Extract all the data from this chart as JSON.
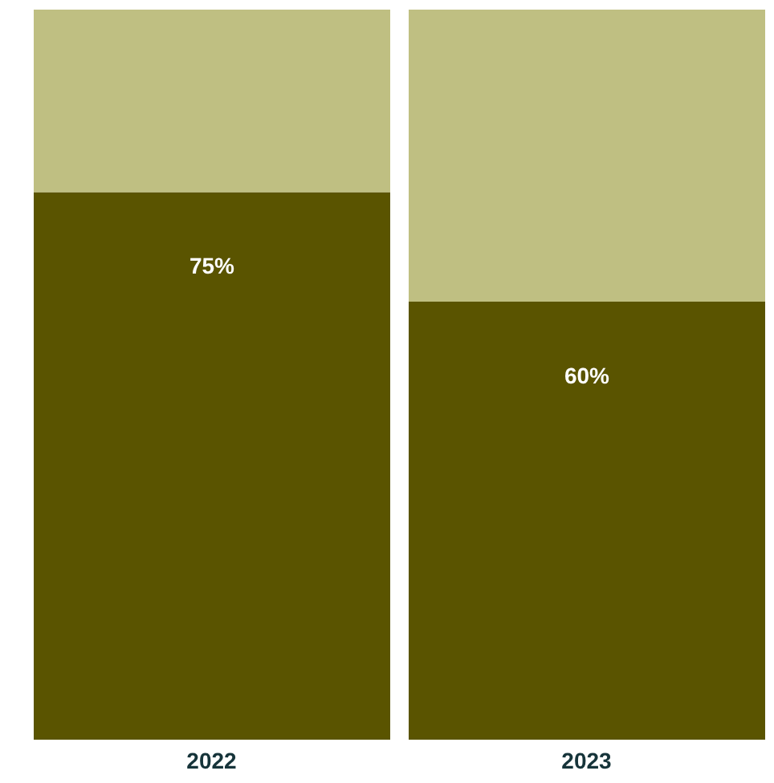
{
  "chart_data": {
    "type": "bar",
    "stacked": true,
    "categories": [
      "2022",
      "2023"
    ],
    "ylim": [
      0,
      100
    ],
    "tick_labels": "x",
    "series": [
      {
        "color": "#5a5400",
        "values": [
          75,
          60
        ],
        "value_labels": [
          "75%",
          "60%"
        ]
      },
      {
        "color": "#bfbf82",
        "values": [
          25,
          40
        ]
      }
    ]
  }
}
